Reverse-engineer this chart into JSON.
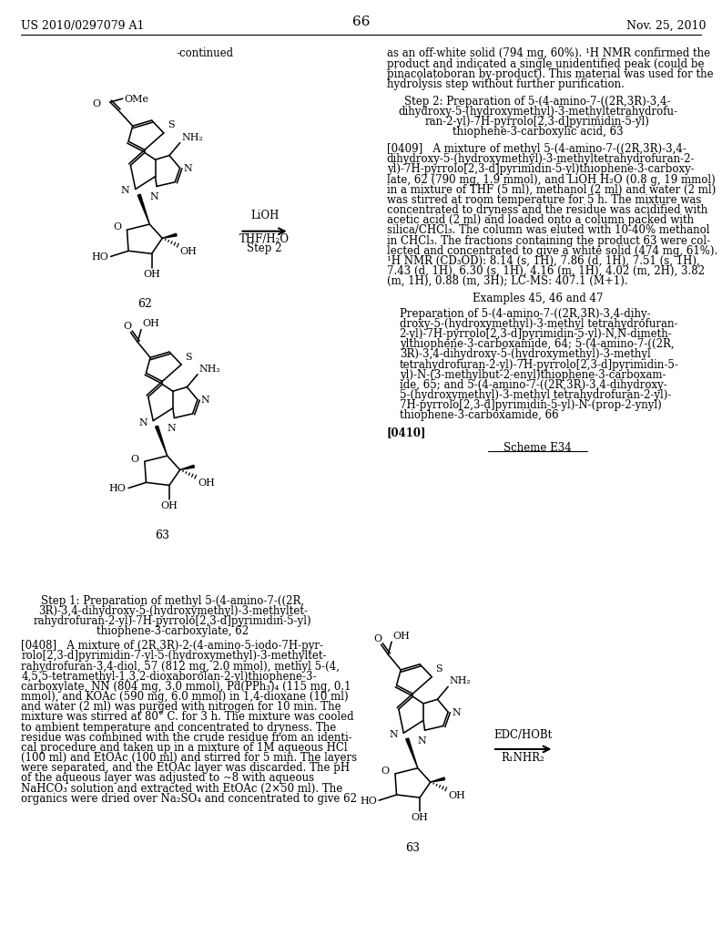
{
  "page_number": "66",
  "patent_number": "US 2010/0297079 A1",
  "patent_date": "Nov. 25, 2010",
  "background_color": "#ffffff",
  "text_color": "#000000",
  "rc_top_lines": [
    "as an off-white solid (794 mg, 60%). ¹H NMR confirmed the",
    "product and indicated a single unidentified peak (could be",
    "pinacolatoboran by-product). This material was used for the",
    "hydrolysis step without further purification."
  ],
  "step2_lines": [
    "Step 2: Preparation of 5-(4-amino-7-((2R,3R)-3,4-",
    "dihydroxy-5-(hydroxymethyl)-3-methyltetrahydrofu-",
    "ran-2-yl)-7H-pyrrolo[2,3-d]pyrimidin-5-yl)",
    "thiophene-3-carboxylic acid, 63"
  ],
  "para0409_lines": [
    "[0409]   A mixture of methyl 5-(4-amino-7-((2R,3R)-3,4-",
    "dihydroxy-5-(hydroxymethyl)-3-methyltetrahydrofuran-2-",
    "yl)-7H-pyrrolo[2,3-d]pyrimidin-5-yl)thiophene-3-carboxy-",
    "late, 62 (790 mg, 1.9 mmol), and LiOH H₂O (0.8 g, 19 mmol)",
    "in a mixture of THF (5 ml), methanol (2 ml) and water (2 ml)",
    "was stirred at room temperature for 5 h. The mixture was",
    "concentrated to dryness and the residue was acidified with",
    "acetic acid (2 ml) and loaded onto a column packed with",
    "silica/CHCl₃. The column was eluted with 10-40% methanol",
    "in CHCl₃. The fractions containing the product 63 were col-",
    "lected and concentrated to give a white solid (474 mg, 61%).",
    "¹H NMR (CD₃OD): 8.14 (s, 1H), 7.86 (d, 1H), 7.51 (s, 1H),",
    "7.43 (d, 1H), 6.30 (s, 1H), 4.16 (m, 1H), 4.02 (m, 2H), 3.82",
    "(m, 1H), 0.88 (m, 3H); LC-MS: 407.1 (M+1)."
  ],
  "examples_header": "Examples 45, 46 and 47",
  "examples_body_lines": [
    "Preparation of 5-(4-amino-7-((2R,3R)-3,4-dihy-",
    "droxy-5-(hydroxymethyl)-3-methyl tetrahydrofuran-",
    "2-yl)-7H-pyrrolo[2,3-d]pyrimidin-5-yl)-N,N-dimeth-",
    "ylthiophene-3-carboxamide, 64; 5-(4-amino-7-((2R,",
    "3R)-3,4-dihydroxy-5-(hydroxymethyl)-3-methyl",
    "tetrahydrofuran-2-yl)-7H-pyrrolo[2,3-d]pyrimidin-5-",
    "yl)-N-(3-methylbut-2-enyl)thiophene-3-carboxam-",
    "ide, 65; and 5-(4-amino-7-((2R,3R)-3,4-dihydroxy-",
    "5-(hydroxymethyl)-3-methyl tetrahydrofuran-2-yl)-",
    "7H-pyrrolo[2,3-d]pyrimidin-5-yl)-N-(prop-2-ynyl)",
    "thiophene-3-carboxamide, 66"
  ],
  "para0410": "[0410]",
  "scheme_e34": "Scheme E34",
  "edc_hobt_text": "EDC/HOBt",
  "r1nhr2_text": "R₁NHR₂",
  "step1_caption_lines": [
    "Step 1: Preparation of methyl 5-(4-amino-7-((2R,",
    "3R)-3,4-dihydroxy-5-(hydroxymethyl)-3-methyltet-",
    "rahydrofuran-2-yl)-7H-pyrrolo[2,3-d]pyrimidin-5-yl)",
    "thiophene-3-carboxylate, 62"
  ],
  "para0408_lines": [
    "[0408]   A mixture of (2R,3R)-2-(4-amino-5-iodo-7H-pyr-",
    "rolo[2,3-d]pyrimidin-7-yl-5-(hydroxymethyl)-3-methyltet-",
    "rahydrofuran-3,4-diol, 57 (812 mg, 2.0 mmol), methyl 5-(4,",
    "4,5,5-tetramethyl-1,3,2-dioxaborolan-2-yl)thiophene-3-",
    "carboxylate, NN (804 mg, 3.0 mmol), Pd(PPh₃)₄ (115 mg, 0.1",
    "mmol), and KOAc (590 mg, 6.0 mmol) in 1,4-dioxane (10 ml)",
    "and water (2 ml) was purged with nitrogen for 10 min. The",
    "mixture was stirred at 80° C. for 3 h. The mixture was cooled",
    "to ambient temperature and concentrated to dryness. The",
    "residue was combined with the crude residue from an identi-",
    "cal procedure and taken up in a mixture of 1M aqueous HCl",
    "(100 ml) and EtOAc (100 ml) and stirred for 5 min. The layers",
    "were separated, and the EtOAc layer was discarded. The pH",
    "of the aqueous layer was adjusted to ~8 with aqueous",
    "NaHCO₃ solution and extracted with EtOAc (2×50 ml). The",
    "organics were dried over Na₂SO₄ and concentrated to give 62"
  ]
}
